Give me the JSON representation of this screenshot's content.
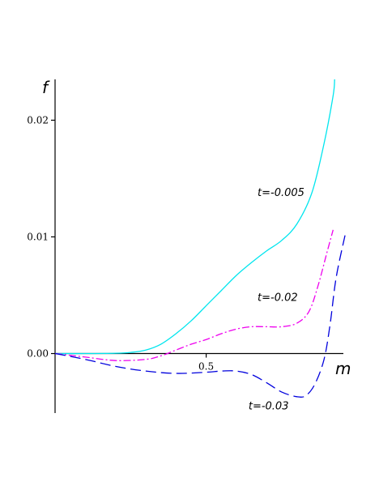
{
  "chart_data": {
    "type": "line",
    "xlabel": "m",
    "ylabel": "f",
    "xlim": [
      0,
      0.97
    ],
    "ylim": [
      -0.0051,
      0.0235
    ],
    "x_ticks": [
      {
        "value": 0.5,
        "label": "0.5"
      }
    ],
    "y_ticks": [
      {
        "value": 0.0,
        "label": "0.00"
      },
      {
        "value": 0.01,
        "label": "0.01"
      },
      {
        "value": 0.02,
        "label": "0.02"
      }
    ],
    "grid": false,
    "series": [
      {
        "name": "t=-0.005",
        "color": "#00e5ee",
        "dash": "solid",
        "label_at": {
          "x": 0.67,
          "y": 0.0135
        },
        "points": [
          [
            0.0,
            0.0
          ],
          [
            0.1,
            0.0
          ],
          [
            0.2,
            3e-05
          ],
          [
            0.25,
            0.0001
          ],
          [
            0.3,
            0.0003
          ],
          [
            0.35,
            0.0008
          ],
          [
            0.4,
            0.0017
          ],
          [
            0.45,
            0.0028
          ],
          [
            0.5,
            0.0041
          ],
          [
            0.55,
            0.0054
          ],
          [
            0.6,
            0.0067
          ],
          [
            0.65,
            0.0078
          ],
          [
            0.7,
            0.0088
          ],
          [
            0.75,
            0.0097
          ],
          [
            0.8,
            0.0111
          ],
          [
            0.85,
            0.0138
          ],
          [
            0.89,
            0.018
          ],
          [
            0.92,
            0.0221
          ],
          [
            0.925,
            0.0235
          ]
        ]
      },
      {
        "name": "t=-0.02",
        "color": "#ee00ee",
        "dash": "dashdot",
        "label_at": {
          "x": 0.67,
          "y": 0.0045
        },
        "points": [
          [
            0.0,
            0.0
          ],
          [
            0.1,
            -0.0003
          ],
          [
            0.2,
            -0.0006
          ],
          [
            0.3,
            -0.0005
          ],
          [
            0.35,
            -0.0002
          ],
          [
            0.4,
            0.0003
          ],
          [
            0.45,
            0.0008
          ],
          [
            0.5,
            0.0012
          ],
          [
            0.55,
            0.0017
          ],
          [
            0.6,
            0.0021
          ],
          [
            0.65,
            0.0023
          ],
          [
            0.7,
            0.0023
          ],
          [
            0.75,
            0.0023
          ],
          [
            0.8,
            0.0026
          ],
          [
            0.84,
            0.0036
          ],
          [
            0.87,
            0.0058
          ],
          [
            0.9,
            0.0087
          ],
          [
            0.92,
            0.0106
          ]
        ]
      },
      {
        "name": "t=-0.03",
        "color": "#0000dd",
        "dash": "longdash",
        "label_at": {
          "x": 0.64,
          "y": -0.0048
        },
        "points": [
          [
            0.0,
            0.0
          ],
          [
            0.1,
            -0.0005
          ],
          [
            0.2,
            -0.0011
          ],
          [
            0.3,
            -0.0015
          ],
          [
            0.4,
            -0.0017
          ],
          [
            0.5,
            -0.0016
          ],
          [
            0.55,
            -0.0015
          ],
          [
            0.6,
            -0.0015
          ],
          [
            0.65,
            -0.0018
          ],
          [
            0.7,
            -0.0025
          ],
          [
            0.75,
            -0.0033
          ],
          [
            0.8,
            -0.0037
          ],
          [
            0.83,
            -0.0036
          ],
          [
            0.86,
            -0.0026
          ],
          [
            0.89,
            -0.0005
          ],
          [
            0.91,
            0.0025
          ],
          [
            0.93,
            0.0065
          ],
          [
            0.96,
            0.0102
          ]
        ]
      }
    ]
  }
}
